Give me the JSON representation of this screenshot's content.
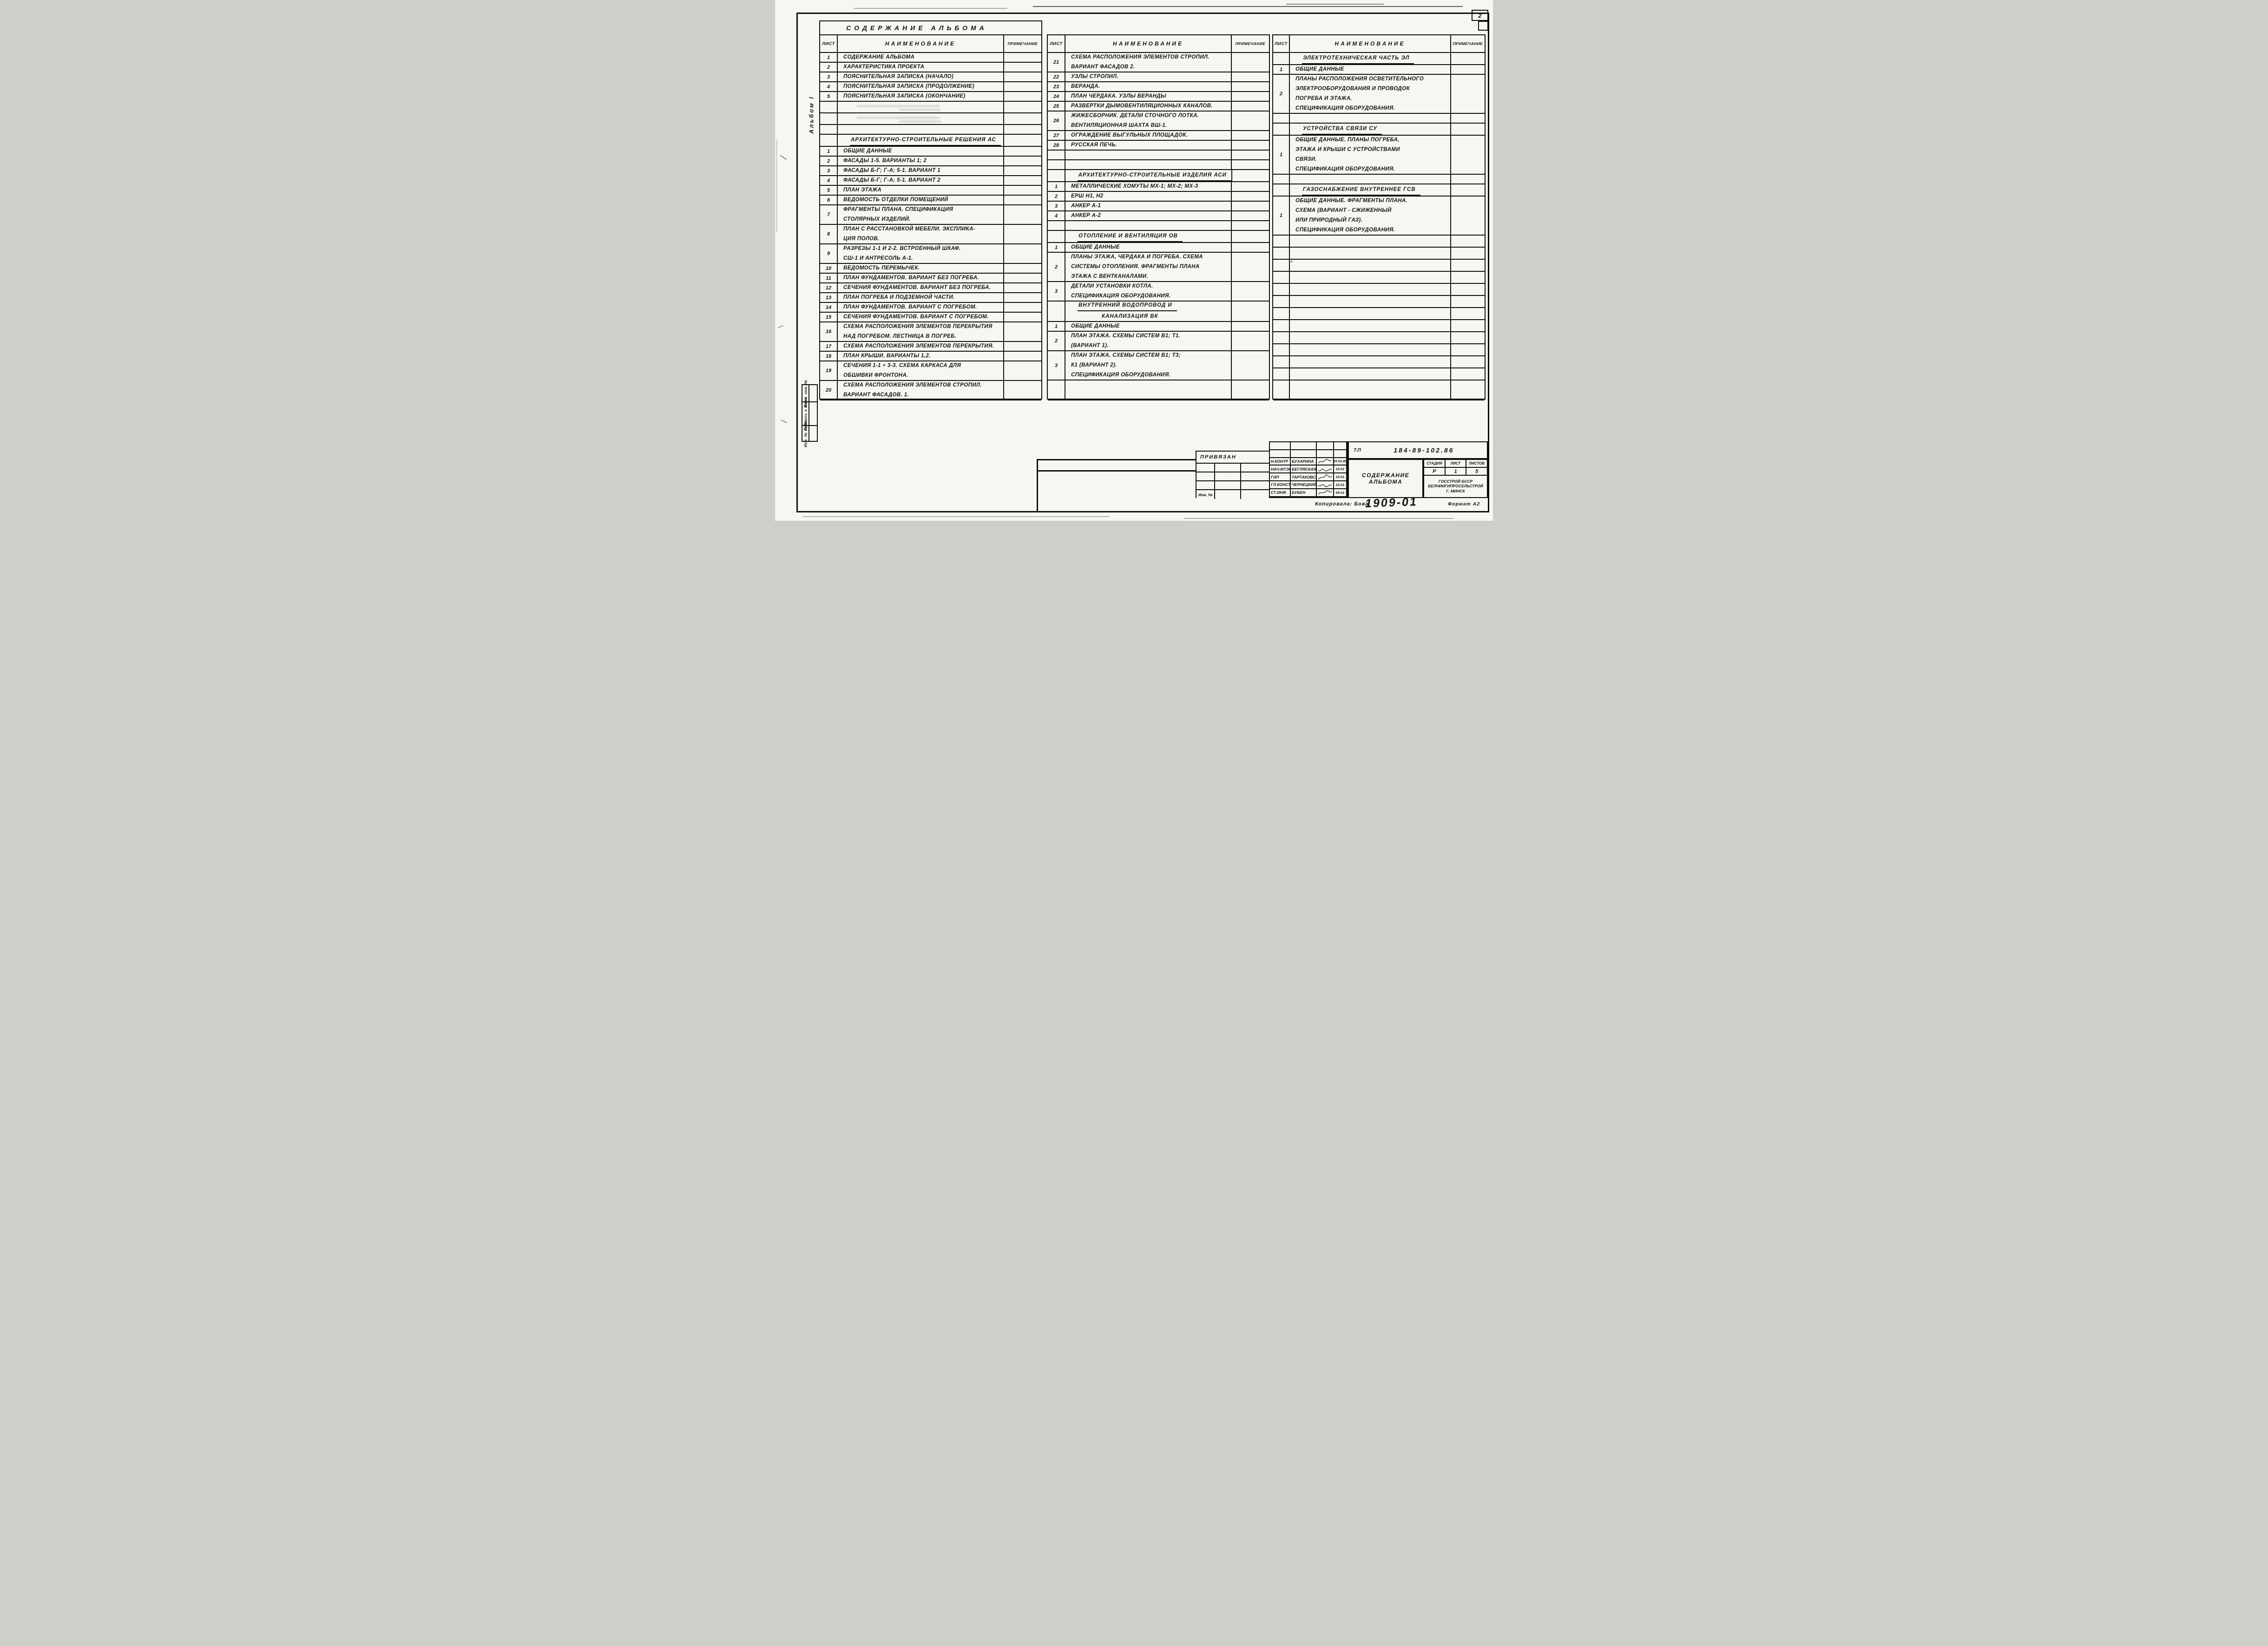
{
  "page": {
    "number": "2"
  },
  "album_label": "Альбом I",
  "columns": {
    "sheet": "Лист",
    "name": "Наименование",
    "note": "Примечание"
  },
  "side_labels": [
    "Взам. инв. №",
    "Подпись и дата",
    "Инв. № подл."
  ],
  "tables": [
    {
      "title": "Содержание альбома",
      "rows": [
        {
          "t": "item",
          "sheet": "1",
          "lines": [
            "Содержание альбома"
          ]
        },
        {
          "t": "item",
          "sheet": "2",
          "lines": [
            "Характеристика проекта"
          ]
        },
        {
          "t": "item",
          "sheet": "3",
          "lines": [
            "Пояснительная записка (начало)"
          ]
        },
        {
          "t": "item",
          "sheet": "4",
          "lines": [
            "Пояснительная записка (продолжение)"
          ]
        },
        {
          "t": "item",
          "sheet": "5",
          "lines": [
            "Пояснительная записка (окончание)"
          ]
        },
        {
          "t": "faint",
          "sheet": "",
          "lines": []
        },
        {
          "t": "faint",
          "sheet": "",
          "lines": []
        },
        {
          "t": "blank",
          "sheet": "",
          "lines": []
        },
        {
          "t": "section",
          "sheet": "",
          "lines": [
            "Архитектурно-строительные решения АС"
          ]
        },
        {
          "t": "item",
          "sheet": "1",
          "lines": [
            "Общие данные"
          ]
        },
        {
          "t": "item",
          "sheet": "2",
          "lines": [
            "Фасады 1-5. Варианты 1; 2"
          ]
        },
        {
          "t": "item",
          "sheet": "3",
          "lines": [
            "Фасады Б-Г; Г-А; 5-1. Вариант 1"
          ]
        },
        {
          "t": "item",
          "sheet": "4",
          "lines": [
            "Фасады Б-Г; Г-А; 5-1. Вариант 2"
          ]
        },
        {
          "t": "item",
          "sheet": "5",
          "lines": [
            "План этажа"
          ]
        },
        {
          "t": "item",
          "sheet": "6",
          "lines": [
            "Ведомость отделки помещений"
          ]
        },
        {
          "t": "item",
          "sheet": "7",
          "lines": [
            "Фрагменты плана. Спецификация",
            "столярных изделий."
          ]
        },
        {
          "t": "item",
          "sheet": "8",
          "lines": [
            "План с расстановкой мебели. Экcплика-",
            "ция полов."
          ]
        },
        {
          "t": "item",
          "sheet": "9",
          "lines": [
            "Разрезы 1-1 и 2-2. Встроенный шкаф.",
            "СШ-1 и антресоль А-1."
          ]
        },
        {
          "t": "item",
          "sheet": "10",
          "lines": [
            "Ведомость перемычек."
          ]
        },
        {
          "t": "item",
          "sheet": "11",
          "lines": [
            "План фундаментов. Вариант без погреба."
          ]
        },
        {
          "t": "item",
          "sheet": "12",
          "lines": [
            "Сечения фундаментов. Вариант без погреба."
          ]
        },
        {
          "t": "item",
          "sheet": "13",
          "lines": [
            "План погреба и подземной части."
          ]
        },
        {
          "t": "item",
          "sheet": "14",
          "lines": [
            "План фундаментов. Вариант с погребом."
          ]
        },
        {
          "t": "item",
          "sheet": "15",
          "lines": [
            "Сечения фундаментов. Вариант с погребом."
          ]
        },
        {
          "t": "item",
          "sheet": "16",
          "lines": [
            "Схема расположения элементов перекрытия",
            "над погребом. Лестница в погреб."
          ]
        },
        {
          "t": "item",
          "sheet": "17",
          "lines": [
            "Схема расположения элементов перекрытия."
          ]
        },
        {
          "t": "item",
          "sheet": "18",
          "lines": [
            "План крыши. Варианты 1,2."
          ]
        },
        {
          "t": "item",
          "sheet": "19",
          "lines": [
            "Сечения 1-1 ÷ 3-3. Схема каркаса для",
            "обшивки фронтона."
          ]
        },
        {
          "t": "item",
          "sheet": "20",
          "lines": [
            "Схема расположения элементов стропил.",
            "Вариант фасадов. 1."
          ]
        }
      ]
    },
    {
      "title": "",
      "rows": [
        {
          "t": "item",
          "sheet": "21",
          "lines": [
            "Схема расположения элементов стропил.",
            "Вариант фасадов 2."
          ]
        },
        {
          "t": "item",
          "sheet": "22",
          "lines": [
            "Узлы стропил."
          ]
        },
        {
          "t": "item",
          "sheet": "23",
          "lines": [
            "Веранда."
          ]
        },
        {
          "t": "item",
          "sheet": "24",
          "lines": [
            "План чердака. Узлы веранды"
          ]
        },
        {
          "t": "item",
          "sheet": "25",
          "lines": [
            "Развертки дымовентиляционных каналов."
          ]
        },
        {
          "t": "item",
          "sheet": "26",
          "lines": [
            "Жижесборник. Детали сточного лотка.",
            "Вентиляционная шахта ВШ-1."
          ]
        },
        {
          "t": "item",
          "sheet": "27",
          "lines": [
            "Ограждение выгульных площадок."
          ]
        },
        {
          "t": "item",
          "sheet": "28",
          "lines": [
            "Русская печь."
          ]
        },
        {
          "t": "blank",
          "sheet": "",
          "lines": []
        },
        {
          "t": "blank",
          "sheet": "",
          "lines": []
        },
        {
          "t": "section",
          "sheet": "",
          "lines": [
            "Архитектурно-строительные изделия АСИ"
          ]
        },
        {
          "t": "item",
          "sheet": "1",
          "lines": [
            "Металлические хомуты МХ-1; МХ-2; МХ-3"
          ]
        },
        {
          "t": "item",
          "sheet": "2",
          "lines": [
            "Ерш Н1, Н2"
          ]
        },
        {
          "t": "item",
          "sheet": "3",
          "lines": [
            "Анкер А-1"
          ]
        },
        {
          "t": "item",
          "sheet": "4",
          "lines": [
            "Анкер А-2"
          ]
        },
        {
          "t": "blank",
          "sheet": "",
          "lines": []
        },
        {
          "t": "section",
          "sheet": "",
          "lines": [
            "Отопление и вентиляция ОВ"
          ]
        },
        {
          "t": "item",
          "sheet": "1",
          "lines": [
            "Общие данные"
          ]
        },
        {
          "t": "item",
          "sheet": "2",
          "lines": [
            "Планы этажа, чердака и погреба. Схема",
            "системы отопления. Фрагменты плана",
            "этажа с вентканалами."
          ]
        },
        {
          "t": "item",
          "sheet": "3",
          "lines": [
            "Детали установки котла.",
            "Спецификация оборудования."
          ]
        },
        {
          "t": "section",
          "sheet": "",
          "lines": [
            "Внутренний водопровод и",
            "канализация ВК"
          ]
        },
        {
          "t": "item",
          "sheet": "1",
          "lines": [
            "Общие данные"
          ]
        },
        {
          "t": "item",
          "sheet": "2",
          "lines": [
            "План этажа. Схемы систем В1; Т1.",
            "(Вариант 1)."
          ]
        },
        {
          "t": "item",
          "sheet": "3",
          "lines": [
            "План этажа. Схемы систем В1; Т3;",
            "К1 (Вариант 2).",
            "Спецификация оборудования."
          ]
        }
      ]
    },
    {
      "title": "",
      "rows": [
        {
          "t": "section",
          "sheet": "",
          "lines": [
            "Электротехническая часть ЭЛ"
          ]
        },
        {
          "t": "item",
          "sheet": "1",
          "lines": [
            "Общие данные"
          ]
        },
        {
          "t": "item",
          "sheet": "2",
          "lines": [
            "Планы расположения осветительного",
            "электрооборудования и проводок",
            "погреба и этажа.",
            "Спецификация оборудования."
          ]
        },
        {
          "t": "blank",
          "sheet": "",
          "lines": []
        },
        {
          "t": "section",
          "sheet": "",
          "lines": [
            "Устройства связи СУ"
          ]
        },
        {
          "t": "item",
          "sheet": "1",
          "lines": [
            "Общие данные. Планы погреба,",
            "этажа и крыши с устройствами",
            "связи.",
            "Спецификация оборудования."
          ]
        },
        {
          "t": "blank",
          "sheet": "",
          "lines": []
        },
        {
          "t": "section",
          "sheet": "",
          "lines": [
            "Газоснабжение внутреннее ГСВ"
          ]
        },
        {
          "t": "item",
          "sheet": "1",
          "lines": [
            "Общие данные. Фрагменты плана.",
            "Схема (вариант - сжиженный",
            "или природный газ).",
            "Спецификация оборудования."
          ]
        }
      ]
    }
  ],
  "title_block": {
    "attach_label": "Привязан",
    "inv_label": "Инв. №",
    "doc_code_label": "Т.П",
    "doc_code": "184-89-102.86",
    "doc_title": "Содержание альбома",
    "stage_label": "Стадия",
    "stage": "Р",
    "sheet_label": "Лист",
    "sheet": "1",
    "sheets_label": "Листов",
    "sheets": "5",
    "org_lines": [
      "Госстрой БССР",
      "Белниигипросельстрой",
      "г. Минск"
    ],
    "signatories": [
      {
        "role": "Н.контр",
        "name": "Бухарина",
        "date": "10.01.89"
      },
      {
        "role": "Нач.МТЭП",
        "name": "Бегляская",
        "date": "10.01"
      },
      {
        "role": "ГИП",
        "name": "Тартаковская",
        "date": "10.01"
      },
      {
        "role": "Гл.констр",
        "name": "Чернецкий",
        "date": "10.01"
      },
      {
        "role": "Ст.инж",
        "name": "Бубен",
        "date": "09.01"
      }
    ],
    "copied_by": "Копировала: Бова",
    "doc_number": "1909-01",
    "format_label": "Формат А2"
  }
}
